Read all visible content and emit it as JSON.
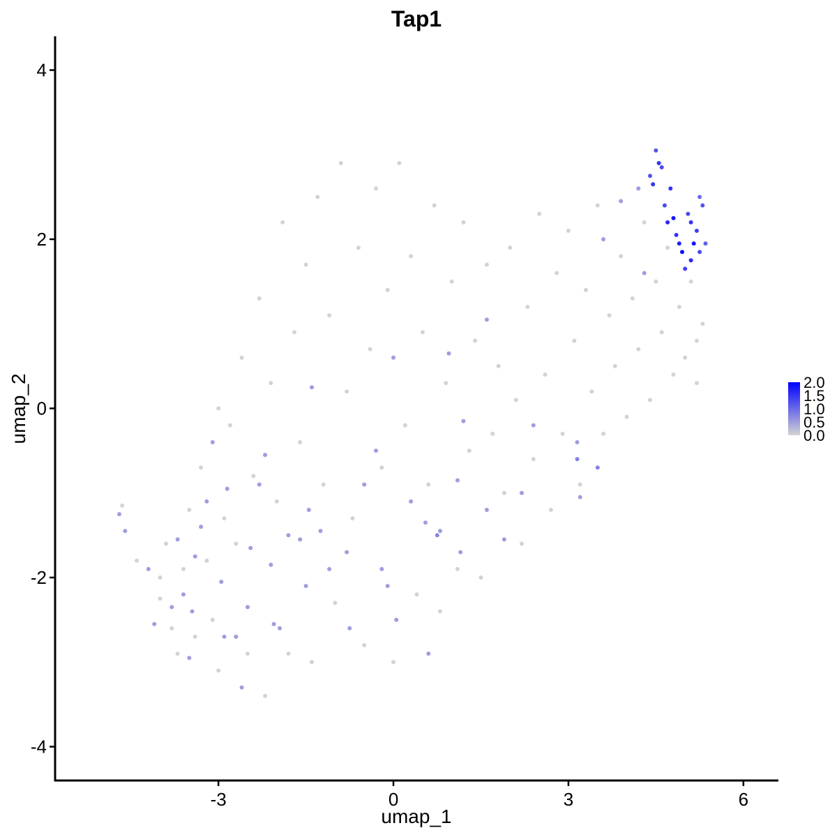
{
  "chart_data": {
    "type": "scatter",
    "title": "Tap1",
    "xlabel": "umap_1",
    "ylabel": "umap_2",
    "xlim": [
      -5.8,
      6.6
    ],
    "ylim": [
      -4.4,
      4.4
    ],
    "x_ticks": [
      -3,
      0,
      3,
      6
    ],
    "y_ticks": [
      -4,
      -2,
      0,
      2,
      4
    ],
    "x_tick_labels": [
      "-3",
      "0",
      "3",
      "6"
    ],
    "y_tick_labels": [
      "-4",
      "-2",
      "0",
      "2",
      "4"
    ],
    "grid": false,
    "legend": {
      "placement": "right",
      "type": "colorbar",
      "labels": [
        "2.0",
        "1.5",
        "1.0",
        "0.5",
        "0.0"
      ],
      "min": 0.0,
      "max": 2.0,
      "color_low": "#d3d3d3",
      "color_high": "#0000ff"
    },
    "series": [
      {
        "values": [
          [
            -4.7,
            -1.25,
            0.5
          ],
          [
            -4.65,
            -1.15,
            0
          ],
          [
            -4.6,
            -1.45,
            0.5
          ],
          [
            -4.4,
            -1.8,
            0
          ],
          [
            -4.2,
            -1.9,
            0.5
          ],
          [
            -4.1,
            -2.55,
            0.5
          ],
          [
            -4.0,
            -2.25,
            0
          ],
          [
            -3.8,
            -2.35,
            0.5
          ],
          [
            -3.7,
            -1.55,
            0.5
          ],
          [
            -3.6,
            -2.2,
            0.5
          ],
          [
            -3.5,
            -2.95,
            0.5
          ],
          [
            -3.45,
            -2.4,
            0.5
          ],
          [
            -3.4,
            -1.75,
            0.5
          ],
          [
            -3.3,
            -1.4,
            0.5
          ],
          [
            -3.2,
            -1.1,
            0.5
          ],
          [
            -3.1,
            -0.4,
            0.5
          ],
          [
            -3.0,
            0.0,
            0
          ],
          [
            -2.95,
            -2.05,
            0.5
          ],
          [
            -2.9,
            -2.7,
            0.5
          ],
          [
            -2.85,
            -0.95,
            0.5
          ],
          [
            -2.7,
            -2.7,
            0.5
          ],
          [
            -2.6,
            -3.3,
            0.5
          ],
          [
            -2.5,
            -2.35,
            0.5
          ],
          [
            -2.45,
            -1.65,
            0.5
          ],
          [
            -2.3,
            -0.9,
            0.5
          ],
          [
            -2.2,
            -0.55,
            0.5
          ],
          [
            -2.1,
            -1.85,
            0.5
          ],
          [
            -2.05,
            -2.55,
            0.5
          ],
          [
            -1.95,
            -2.6,
            0.5
          ],
          [
            -1.8,
            -1.5,
            0.5
          ],
          [
            -1.6,
            -1.55,
            0.5
          ],
          [
            -1.5,
            -2.1,
            0.5
          ],
          [
            -1.45,
            -1.2,
            0.5
          ],
          [
            -1.4,
            0.25,
            0.5
          ],
          [
            -1.25,
            -1.45,
            0.5
          ],
          [
            -1.1,
            -1.9,
            0.5
          ],
          [
            -0.8,
            -1.7,
            0.5
          ],
          [
            -0.75,
            -2.6,
            0.5
          ],
          [
            -0.5,
            -0.9,
            0.5
          ],
          [
            -0.3,
            -0.5,
            0.5
          ],
          [
            -0.2,
            -1.9,
            0.5
          ],
          [
            -0.1,
            -2.1,
            0.5
          ],
          [
            0.0,
            0.6,
            0.5
          ],
          [
            0.05,
            -2.5,
            0.5
          ],
          [
            0.3,
            -1.1,
            0.5
          ],
          [
            0.55,
            -1.35,
            0.5
          ],
          [
            0.6,
            -2.9,
            0.5
          ],
          [
            0.75,
            -1.5,
            0.75
          ],
          [
            0.8,
            -1.45,
            0.5
          ],
          [
            0.95,
            0.65,
            0.5
          ],
          [
            1.1,
            -0.85,
            0.5
          ],
          [
            1.15,
            -1.7,
            0.5
          ],
          [
            1.2,
            -0.15,
            0.5
          ],
          [
            1.6,
            -1.2,
            0.5
          ],
          [
            1.6,
            1.05,
            0.5
          ],
          [
            1.9,
            -1.55,
            0.5
          ],
          [
            2.2,
            -1.0,
            0.5
          ],
          [
            2.4,
            -0.2,
            0.5
          ],
          [
            3.15,
            -0.4,
            0.5
          ],
          [
            3.15,
            -0.6,
            0.75
          ],
          [
            3.2,
            -1.05,
            0.5
          ],
          [
            3.5,
            -0.7,
            0.75
          ],
          [
            3.6,
            2.0,
            0.5
          ],
          [
            3.9,
            2.45,
            0.5
          ],
          [
            4.2,
            2.6,
            0.5
          ],
          [
            4.3,
            1.6,
            0.5
          ],
          [
            4.4,
            2.75,
            1.2
          ],
          [
            4.45,
            2.65,
            1.5
          ],
          [
            4.5,
            3.05,
            1.2
          ],
          [
            4.55,
            2.9,
            1.5
          ],
          [
            4.6,
            2.85,
            1.3
          ],
          [
            4.65,
            2.4,
            1.3
          ],
          [
            4.7,
            2.2,
            1.6
          ],
          [
            4.75,
            2.6,
            1.5
          ],
          [
            4.8,
            2.25,
            1.8
          ],
          [
            4.85,
            2.05,
            1.5
          ],
          [
            4.9,
            1.95,
            1.7
          ],
          [
            4.95,
            1.85,
            1.9
          ],
          [
            5.0,
            1.65,
            1.4
          ],
          [
            5.05,
            2.3,
            1.3
          ],
          [
            5.1,
            1.75,
            1.6
          ],
          [
            5.15,
            1.95,
            1.8
          ],
          [
            5.2,
            2.1,
            1.4
          ],
          [
            5.25,
            1.85,
            1.3
          ],
          [
            5.3,
            2.4,
            1.2
          ],
          [
            5.35,
            1.95,
            1.1
          ],
          [
            5.25,
            2.5,
            1.0
          ],
          [
            5.1,
            2.2,
            1.5
          ],
          [
            -4.0,
            -2.0,
            0
          ],
          [
            -3.9,
            -1.6,
            0
          ],
          [
            -3.8,
            -2.6,
            0
          ],
          [
            -3.7,
            -2.9,
            0
          ],
          [
            -3.6,
            -1.9,
            0
          ],
          [
            -3.5,
            -1.2,
            0
          ],
          [
            -3.4,
            -2.7,
            0
          ],
          [
            -3.3,
            -0.7,
            0
          ],
          [
            -3.2,
            -1.8,
            0
          ],
          [
            -3.1,
            -2.5,
            0
          ],
          [
            -3.0,
            -3.1,
            0
          ],
          [
            -2.9,
            -1.3,
            0
          ],
          [
            -2.8,
            -0.2,
            0
          ],
          [
            -2.7,
            -1.6,
            0
          ],
          [
            -2.6,
            0.6,
            0
          ],
          [
            -2.5,
            -2.9,
            0
          ],
          [
            -2.4,
            -0.8,
            0
          ],
          [
            -2.3,
            1.3,
            0
          ],
          [
            -2.2,
            -3.4,
            0
          ],
          [
            -2.1,
            0.3,
            0
          ],
          [
            -2.0,
            -1.1,
            0
          ],
          [
            -1.9,
            2.2,
            0
          ],
          [
            -1.8,
            -2.9,
            0
          ],
          [
            -1.7,
            0.9,
            0
          ],
          [
            -1.6,
            -0.4,
            0
          ],
          [
            -1.5,
            1.7,
            0
          ],
          [
            -1.4,
            -3.0,
            0
          ],
          [
            -1.3,
            2.5,
            0
          ],
          [
            -1.2,
            -0.9,
            0
          ],
          [
            -1.1,
            1.1,
            0
          ],
          [
            -1.0,
            -2.3,
            0
          ],
          [
            -0.9,
            2.9,
            0
          ],
          [
            -0.8,
            0.2,
            0
          ],
          [
            -0.7,
            -1.3,
            0
          ],
          [
            -0.6,
            1.9,
            0
          ],
          [
            -0.5,
            -2.8,
            0
          ],
          [
            -0.4,
            0.7,
            0
          ],
          [
            -0.3,
            2.6,
            0
          ],
          [
            -0.2,
            -0.7,
            0
          ],
          [
            -0.1,
            1.4,
            0
          ],
          [
            0.0,
            -3.0,
            0
          ],
          [
            0.1,
            2.9,
            0
          ],
          [
            0.2,
            -0.2,
            0
          ],
          [
            0.3,
            1.8,
            0
          ],
          [
            0.4,
            -2.2,
            0
          ],
          [
            0.5,
            0.9,
            0
          ],
          [
            0.6,
            -0.9,
            0
          ],
          [
            0.7,
            2.4,
            0
          ],
          [
            0.8,
            -2.4,
            0
          ],
          [
            0.9,
            0.3,
            0
          ],
          [
            1.0,
            1.5,
            0
          ],
          [
            1.1,
            -1.9,
            0
          ],
          [
            1.2,
            2.2,
            0
          ],
          [
            1.3,
            -0.5,
            0
          ],
          [
            1.4,
            0.8,
            0
          ],
          [
            1.5,
            -2.0,
            0
          ],
          [
            1.6,
            1.7,
            0
          ],
          [
            1.7,
            -0.3,
            0
          ],
          [
            1.8,
            0.5,
            0
          ],
          [
            1.9,
            -1.0,
            0
          ],
          [
            2.0,
            1.9,
            0
          ],
          [
            2.1,
            0.1,
            0
          ],
          [
            2.2,
            -1.6,
            0
          ],
          [
            2.3,
            1.2,
            0
          ],
          [
            2.4,
            -0.6,
            0
          ],
          [
            2.5,
            2.3,
            0
          ],
          [
            2.6,
            0.4,
            0
          ],
          [
            2.7,
            -1.2,
            0
          ],
          [
            2.8,
            1.6,
            0
          ],
          [
            2.9,
            -0.3,
            0
          ],
          [
            3.0,
            2.1,
            0
          ],
          [
            3.1,
            0.8,
            0
          ],
          [
            3.2,
            -0.9,
            0
          ],
          [
            3.3,
            1.4,
            0
          ],
          [
            3.4,
            0.2,
            0
          ],
          [
            3.5,
            2.4,
            0
          ],
          [
            3.6,
            -0.3,
            0
          ],
          [
            3.7,
            1.1,
            0
          ],
          [
            3.8,
            0.5,
            0
          ],
          [
            3.9,
            1.8,
            0
          ],
          [
            4.0,
            -0.1,
            0
          ],
          [
            4.1,
            1.3,
            0
          ],
          [
            4.2,
            0.7,
            0
          ],
          [
            4.3,
            2.2,
            0
          ],
          [
            4.4,
            0.1,
            0
          ],
          [
            4.5,
            1.5,
            0
          ],
          [
            4.6,
            0.9,
            0
          ],
          [
            4.7,
            1.9,
            0
          ],
          [
            4.8,
            0.4,
            0
          ],
          [
            4.9,
            1.2,
            0
          ],
          [
            5.0,
            0.6,
            0
          ],
          [
            5.1,
            1.5,
            0
          ],
          [
            5.2,
            0.8,
            0
          ],
          [
            5.3,
            1.0,
            0
          ],
          [
            5.2,
            0.3,
            0
          ]
        ]
      }
    ]
  }
}
